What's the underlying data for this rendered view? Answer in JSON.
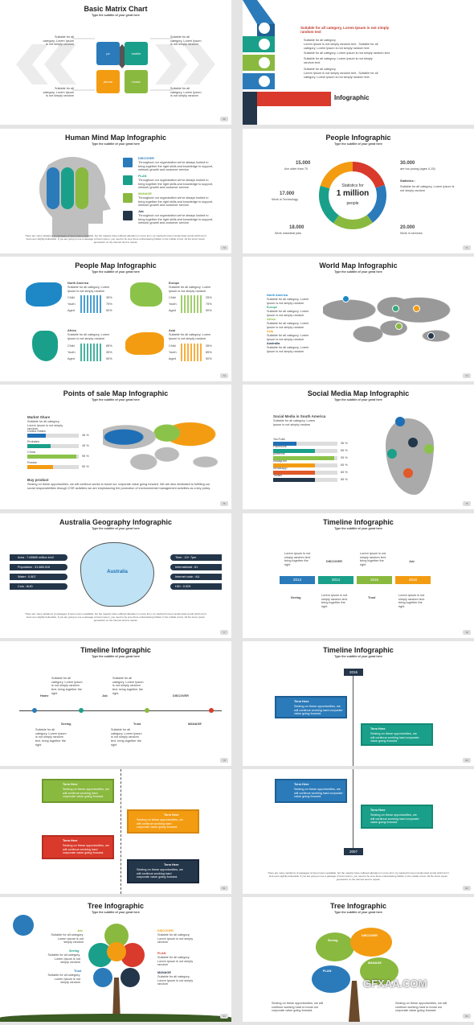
{
  "subtitle": "Type the subtitle of your great here",
  "body_text": "Suitable for all category, Lorem Ipsum is not simply random",
  "footnote": "There are many variations of passages of lorem ipsum available, but the majority have suffered alteration in some form, by injected humour randomised words which don't look even slightly believable. If you are going to use a passage of lorem ipsum, you need to be sure there embarrassing hidden in the middle of text. All the lorem ipsum generators on the internet tend to repeat.",
  "s1": {
    "title": "Basic Matrix Chart",
    "tiles": [
      "pc",
      "mobile",
      "phone",
      "music"
    ],
    "page": "69"
  },
  "s2": {
    "heading": "Suitable for all category, Lorem Ipsum is not simply random text",
    "lines": [
      "Suitable for all category,",
      "Lorem Ipsum is not simply random text , Suitable for all",
      "category, Lorem Ipsum is not simply random text",
      "Suitable for all category, Lorem Ipsum is not simply random text.",
      "Suitable for all category, Lorem Ipsum is not simply",
      "random text.",
      "Suitable for all category,",
      "Lorem Ipsum is not simply random text , Suitable for all",
      "category, Lorem Ipsum is not simply random text."
    ],
    "label": "Infographic"
  },
  "s3": {
    "title": "Human Mind Map Infographic",
    "items": [
      {
        "name": "DISCOVER",
        "color": "#2b7bba"
      },
      {
        "name": "PLAN",
        "color": "#3aa77c"
      },
      {
        "name": "MANAGE",
        "color": "#8ab93f"
      },
      {
        "name": "Job",
        "color": "#24364a"
      }
    ],
    "desc": "Throughout our organization we've always looked to bring together the right skills and knowledge to support, network growth and customer service.",
    "page": "70"
  },
  "s4": {
    "title": "People Infographic",
    "center": [
      "Statistics for",
      "1 million",
      "people"
    ],
    "stats": [
      {
        "value": "15.000",
        "label": "Are older than 70"
      },
      {
        "value": "30.000",
        "label": "are too young (ages 0-15)"
      },
      {
        "value": "17.000",
        "label": "Work in Technology"
      },
      {
        "value": "18.000",
        "label": "Work industrial jobs"
      },
      {
        "value": "20.000",
        "label": "Work in services"
      }
    ],
    "statistics_label": "Statistics :",
    "page": "71"
  },
  "s5": {
    "title": "People Map Infographic",
    "regions": [
      {
        "name": "North America",
        "color": "#1e88c7",
        "rows": [
          [
            "Child",
            "35%"
          ],
          [
            "Youth",
            "75%"
          ],
          [
            "Aged",
            "50%"
          ]
        ]
      },
      {
        "name": "Europe",
        "color": "#8bc34a",
        "rows": [
          [
            "Child",
            "25%"
          ],
          [
            "Youth",
            "75%"
          ],
          [
            "Aged",
            "50%"
          ]
        ]
      },
      {
        "name": "Africa",
        "color": "#1aa08a",
        "rows": [
          [
            "Child",
            "85%"
          ],
          [
            "Youth",
            "35%"
          ],
          [
            "Aged",
            "50%"
          ]
        ]
      },
      {
        "name": "Asia",
        "color": "#f39c12",
        "rows": [
          [
            "Child",
            "35%"
          ],
          [
            "Youth",
            "85%"
          ],
          [
            "Aged",
            "50%"
          ]
        ]
      }
    ],
    "page": "73"
  },
  "s6": {
    "title": "World Map Infographic",
    "regions": [
      {
        "name": "North America",
        "color": "#1e88c7"
      },
      {
        "name": "Europe",
        "color": "#3aa77c"
      },
      {
        "name": "Africa",
        "color": "#8ab93f"
      },
      {
        "name": "Asia",
        "color": "#f39c12"
      },
      {
        "name": "Australia",
        "color": "#24364a"
      }
    ],
    "page": "74"
  },
  "s7": {
    "title": "Points of sale Map Infographic",
    "market": "Market Share",
    "rows": [
      {
        "name": "United States",
        "value": "36 %",
        "pct": 36,
        "color": "#1e6fb5"
      },
      {
        "name": "Emirates",
        "value": "45 %",
        "pct": 45,
        "color": "#1aa08a"
      },
      {
        "name": "China",
        "value": "95 %",
        "pct": 95,
        "color": "#8bc34a"
      },
      {
        "name": "Russia",
        "value": "50 %",
        "pct": 50,
        "color": "#f39c12"
      }
    ],
    "buy": "Buy product",
    "buy_text": "Seizing on these opportunities, we will continue works to boost our corporate value going forward. We are also dedicated to fulfilling our social responsibilities through CSR activities we are emphasizing the promotion of environmental management activities as a key policy.",
    "page": "75"
  },
  "s8": {
    "title": "Social Media Map Infographic",
    "heading": "Social Media in South America",
    "rows": [
      {
        "name": "YouTube",
        "value": "36 %",
        "pct": 36,
        "color": "#1e6fb5"
      },
      {
        "name": "Facebook",
        "value": "65 %",
        "pct": 65,
        "color": "#1aa08a"
      },
      {
        "name": "pinterest",
        "value": "95 %",
        "pct": 95,
        "color": "#8bc34a"
      },
      {
        "name": "Instagram",
        "value": "65 %",
        "pct": 65,
        "color": "#f39c12"
      },
      {
        "name": "WhatsApp",
        "value": "65 %",
        "pct": 65,
        "color": "#e05a2a"
      },
      {
        "name": "Twitter",
        "value": "65 %",
        "pct": 65,
        "color": "#24364a"
      }
    ],
    "page": "76"
  },
  "s9": {
    "title": "Australia Geography Infographic",
    "left": [
      "Area : 7.68685 million km2",
      "Population : 31.885.016",
      "Water : 0.807",
      "Coin : AUD"
    ],
    "right": [
      "Time : 10+ 7pm",
      "International : 61",
      "Internet code : AU",
      "HDI : 0.929"
    ],
    "map": "Australia",
    "page": "77"
  },
  "s10": {
    "title": "Timeline Infographic",
    "years": [
      "2013",
      "2014",
      "2015",
      "2016"
    ],
    "top": [
      "DISCOVER",
      "Job"
    ],
    "bottom": [
      "Seeing",
      "Trust"
    ],
    "note": "Lorem Ipsum is not simply random text. bring together the right",
    "page": "78"
  },
  "s11": {
    "title": "Timeline Infographic",
    "top": [
      "Home",
      "Job",
      "DISCOVER"
    ],
    "bottom": [
      "Seeing",
      "Trust",
      "MANAGE"
    ],
    "note": "Suitable for all category, Lorem Ipsum is not simply random text. bring together the right",
    "page": "79"
  },
  "s12": {
    "title": "Timeline Infographic",
    "years": [
      "2016",
      "2007"
    ],
    "term": "Term Here",
    "cards": [
      "Seizing on these opportunities, we will continue working hard corporate value going forward.",
      "Seizing on these opportunities, we will continue working hard corporate value going forward."
    ],
    "page": "80"
  },
  "s13": {
    "term": "Term Here",
    "text": "Seizing on these opportunities, we will continue working hard corporate value going forward.",
    "page": "81"
  },
  "s14": {
    "years": [
      "2007"
    ],
    "term": "Term Here",
    "text": "Seizing on these opportunities, we will continue working hard corporate value going forward.",
    "page": "82"
  },
  "s15": {
    "title": "Tree Infographic",
    "labels": [
      "Job",
      "Seeing",
      "Trust",
      "DISCOVER",
      "PLAN",
      "MANAGE"
    ],
    "page": "83"
  },
  "s16": {
    "title": "Tree Infographic",
    "labels": [
      "Seeing",
      "DISCOVER",
      "MANAGE",
      "PLAN"
    ],
    "text": "Seizing on these opportunities, we will continue working hard to boost our corporate value going forward.",
    "page": "84"
  },
  "watermark": "GFXAA.COM"
}
